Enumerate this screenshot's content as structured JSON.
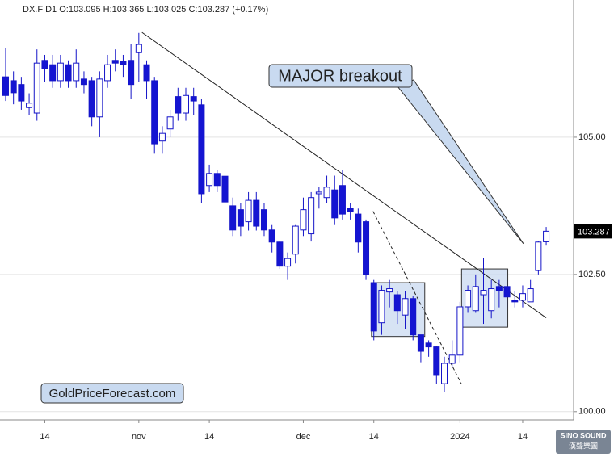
{
  "chart_data": {
    "type": "candlestick",
    "title": "DX.F  D1  O:103.095  H:103.365  L:103.025  C:103.287  (+0.17%)",
    "categories": [
      null,
      null,
      null,
      null,
      null,
      "14",
      null,
      null,
      null,
      null,
      null,
      null,
      null,
      null,
      null,
      null,
      null,
      "nov",
      null,
      null,
      null,
      null,
      null,
      null,
      null,
      null,
      "14",
      null,
      null,
      null,
      null,
      null,
      null,
      null,
      null,
      null,
      null,
      null,
      "dec",
      null,
      null,
      null,
      null,
      null,
      null,
      null,
      null,
      "14",
      null,
      null,
      null,
      null,
      null,
      null,
      null,
      null,
      null,
      null,
      "2024",
      null,
      null,
      null,
      null,
      null,
      null,
      null,
      "14",
      null,
      null,
      null
    ],
    "open": [
      106.1,
      106.03,
      105.96,
      105.54,
      105.44,
      106.4,
      106.32,
      106.03,
      106.32,
      106.03,
      106.06,
      106.03,
      105.37,
      106.03,
      106.4,
      106.38,
      106.4,
      106.54,
      106.32,
      106.03,
      104.93,
      105.15,
      105.74,
      105.44,
      105.74,
      105.59,
      104.12,
      104.34,
      104.29,
      103.75,
      103.68,
      103.46,
      103.85,
      103.68,
      103.31,
      103.09,
      102.65,
      102.87,
      103.31,
      103.24,
      103.97,
      103.9,
      104.04,
      104.12,
      103.71,
      103.6,
      103.46,
      102.35,
      101.62,
      102.18,
      102.13,
      101.76,
      102.06,
      101.4,
      101.25,
      101.18,
      100.51,
      100.88,
      101.03,
      101.91,
      101.84,
      102.13,
      101.84,
      102.28,
      102.28,
      102.03,
      102.03,
      102.0,
      102.57,
      103.095
    ],
    "high": [
      106.62,
      106.2,
      106.1,
      105.8,
      106.6,
      106.5,
      106.5,
      106.5,
      106.4,
      106.6,
      106.2,
      106.1,
      106.2,
      106.5,
      106.6,
      106.5,
      106.7,
      106.9,
      106.4,
      106.1,
      105.2,
      105.5,
      105.9,
      105.9,
      105.9,
      105.7,
      104.5,
      104.4,
      104.4,
      103.9,
      103.8,
      104.0,
      104.0,
      103.8,
      103.4,
      103.1,
      102.9,
      103.4,
      103.9,
      104.0,
      104.1,
      104.3,
      104.3,
      104.4,
      103.8,
      103.7,
      103.5,
      102.4,
      102.3,
      102.4,
      102.2,
      102.2,
      102.1,
      101.4,
      101.3,
      101.2,
      101.0,
      101.3,
      102.0,
      102.3,
      102.5,
      102.8,
      102.4,
      102.4,
      102.4,
      102.2,
      102.3,
      102.4,
      103.1,
      103.365
    ],
    "low": [
      105.66,
      105.6,
      105.5,
      105.4,
      105.3,
      106.0,
      105.9,
      105.9,
      105.9,
      105.9,
      105.8,
      105.2,
      105.0,
      105.9,
      106.2,
      106.1,
      105.7,
      106.0,
      105.7,
      104.7,
      104.7,
      105.0,
      105.3,
      105.3,
      105.4,
      103.8,
      104.0,
      104.0,
      103.7,
      103.2,
      103.2,
      103.3,
      103.3,
      103.2,
      102.9,
      102.6,
      102.4,
      102.7,
      103.2,
      103.1,
      103.7,
      103.8,
      103.4,
      103.5,
      103.5,
      102.9,
      102.4,
      101.3,
      101.4,
      101.9,
      101.6,
      101.5,
      101.3,
      100.9,
      101.0,
      100.5,
      100.35,
      100.8,
      100.9,
      101.8,
      101.8,
      101.6,
      101.7,
      101.9,
      101.9,
      101.9,
      101.9,
      102.0,
      102.5,
      103.025
    ],
    "close": [
      105.76,
      105.81,
      105.66,
      105.62,
      106.35,
      106.25,
      106.03,
      106.35,
      106.03,
      106.35,
      105.96,
      105.37,
      106.06,
      106.32,
      106.35,
      106.33,
      105.96,
      106.69,
      106.03,
      104.88,
      105.07,
      105.37,
      105.44,
      105.76,
      105.66,
      103.97,
      104.34,
      104.12,
      103.82,
      103.31,
      103.38,
      103.85,
      103.38,
      103.31,
      103.09,
      102.65,
      102.79,
      103.38,
      103.68,
      103.9,
      104.0,
      104.09,
      103.53,
      103.6,
      103.65,
      103.09,
      102.5,
      101.47,
      102.21,
      102.24,
      101.84,
      102.06,
      101.4,
      101.1,
      101.18,
      100.66,
      100.88,
      101.03,
      101.91,
      102.21,
      102.28,
      102.21,
      102.24,
      102.21,
      102.09,
      102.0,
      102.15,
      102.24,
      103.09,
      103.287
    ],
    "colors": {
      "up": "#ffffff",
      "down": "#1414d2",
      "edge": "#1414c8"
    },
    "xlim": [
      -0.72,
      72.5
    ],
    "ylim": [
      99.85,
      107.5
    ],
    "yticks": [
      {
        "value": 100,
        "label": "100.00"
      },
      {
        "value": 102.5,
        "label": "102.50"
      },
      {
        "value": 105,
        "label": "105.00"
      }
    ],
    "grid": true,
    "last_price": 103.287,
    "trendlines": [
      {
        "x": [
          17.4,
          69
        ],
        "y": [
          106.91,
          101.71
        ],
        "style": "solid"
      },
      {
        "x": [
          46.9,
          58.2
        ],
        "y": [
          103.65,
          100.5
        ],
        "style": "dashed"
      }
    ],
    "boxes": [
      {
        "x": [
          46.7,
          53.5
        ],
        "y": [
          102.35,
          101.37
        ]
      },
      {
        "x": [
          58.2,
          64.1
        ],
        "y": [
          102.6,
          101.54
        ]
      }
    ],
    "annotation": {
      "text": "MAJOR breakout",
      "x": 66.1,
      "y": 103.06
    },
    "watermark": "GoldPriceForecast.com",
    "logo": [
      "SINO SOUND",
      "漢聲樂圖"
    ]
  }
}
